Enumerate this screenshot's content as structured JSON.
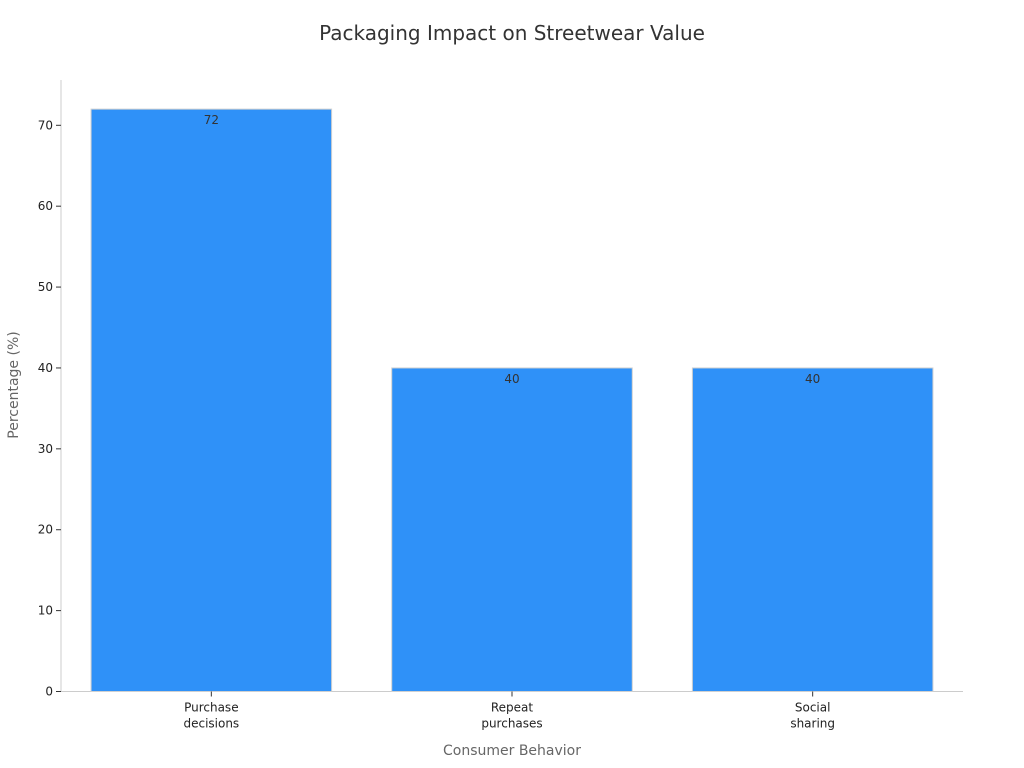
{
  "chart_data": {
    "type": "bar",
    "title": "Packaging Impact on Streetwear Value",
    "xlabel": "Consumer Behavior",
    "ylabel": "Percentage (%)",
    "categories": [
      [
        "Purchase",
        "decisions"
      ],
      [
        "Repeat",
        "purchases"
      ],
      [
        "Social",
        "sharing"
      ]
    ],
    "values": [
      72,
      40,
      40
    ],
    "data_labels": [
      "72",
      "40",
      "40"
    ],
    "yticks": [
      0,
      10,
      20,
      30,
      40,
      50,
      60,
      70
    ],
    "ylim": [
      0,
      75.6
    ],
    "grid": false,
    "legend": "none",
    "bar_color": "#2f91f8"
  }
}
